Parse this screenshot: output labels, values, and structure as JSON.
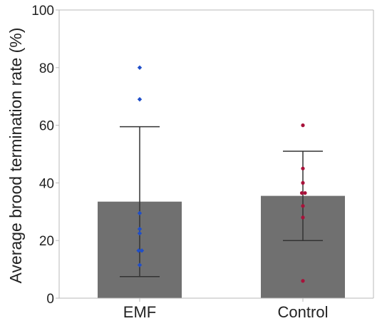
{
  "chart_data": {
    "type": "bar",
    "title": "",
    "xlabel": "",
    "ylabel": "Average brood termination rate (%)",
    "ylim": [
      0,
      100
    ],
    "yticks": [
      "0",
      "20",
      "40",
      "60",
      "80",
      "100"
    ],
    "categories": [
      "EMF",
      "Control"
    ],
    "values": [
      33.5,
      35.5
    ],
    "error_bars": [
      {
        "lower": 7.5,
        "upper": 59.5
      },
      {
        "lower": 20,
        "upper": 51
      }
    ],
    "points": [
      [
        80,
        69,
        29.5,
        24,
        22.5,
        16.5,
        16.5,
        11.5
      ],
      [
        60,
        45,
        40,
        36.5,
        36.5,
        32,
        28,
        6
      ]
    ],
    "colors": {
      "bar": "#707070",
      "error_bar": "#333333",
      "axis": "#b8b8b8",
      "points": [
        "#1f4ec9",
        "#a8123a"
      ]
    },
    "grid": false,
    "legend": "none"
  }
}
